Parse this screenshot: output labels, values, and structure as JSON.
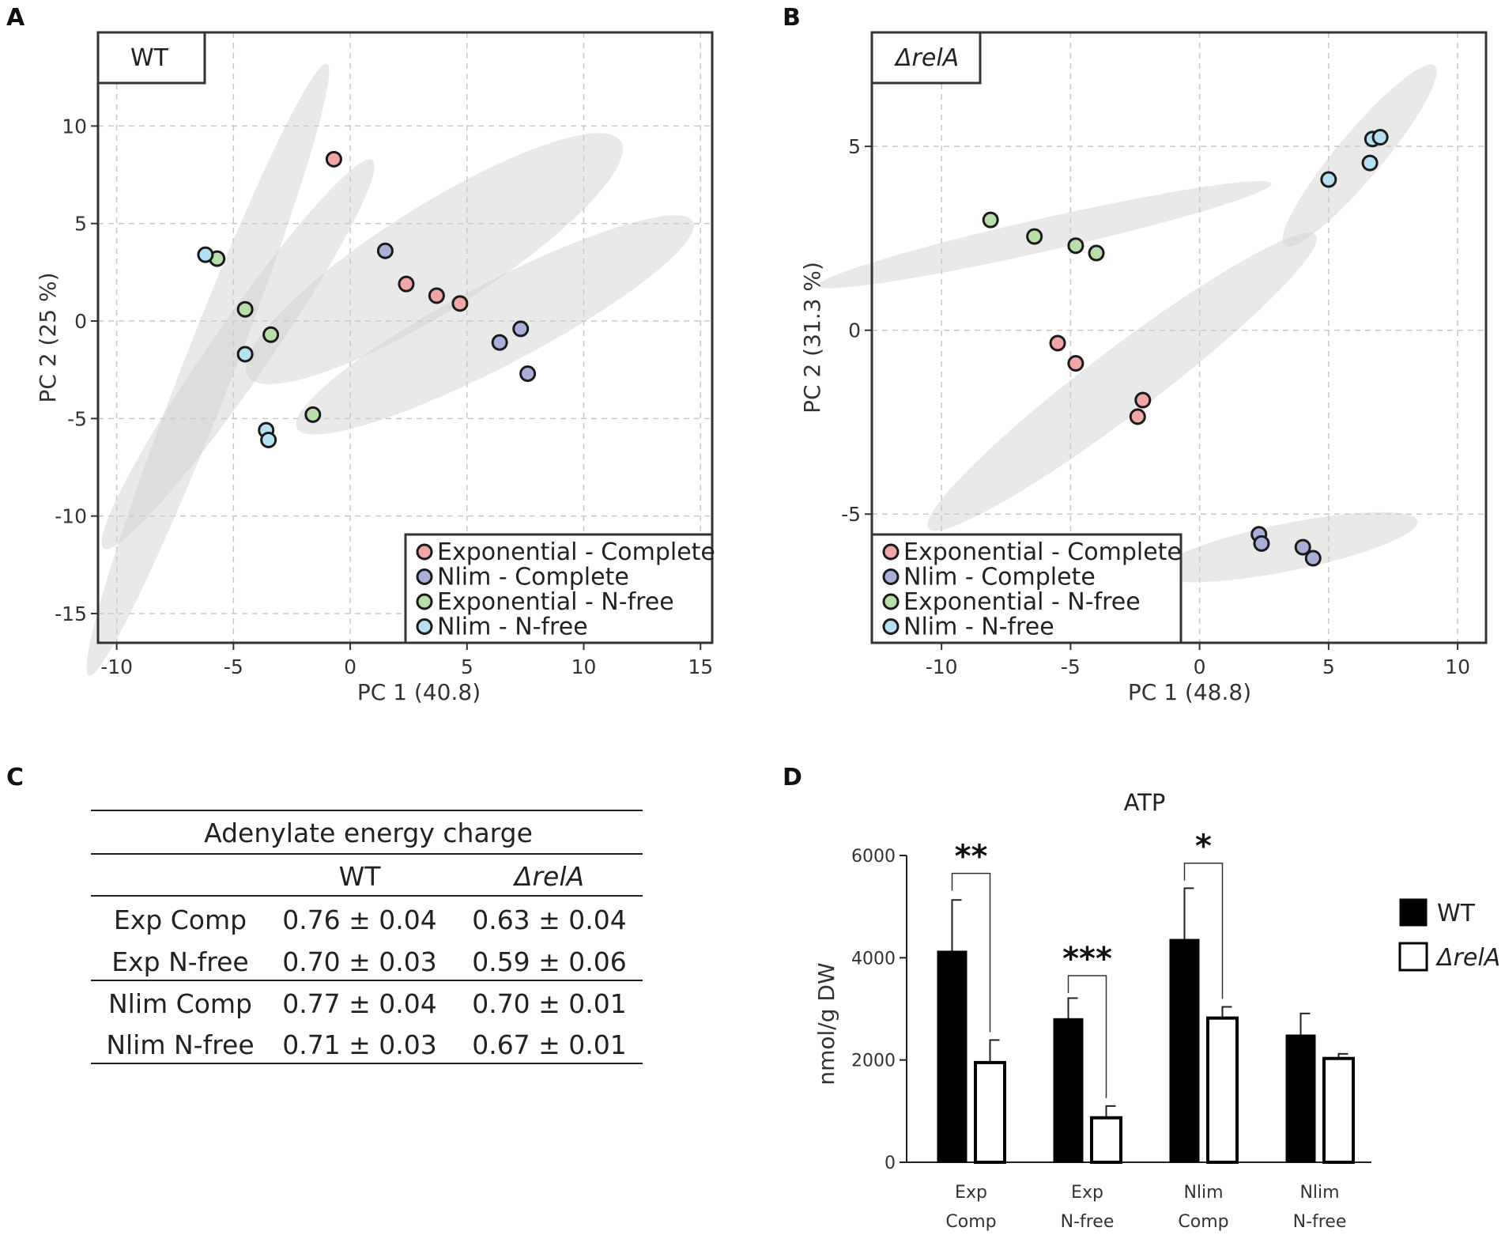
{
  "panels": {
    "A": "A",
    "B": "B",
    "C": "C",
    "D": "D"
  },
  "chart_data": [
    {
      "id": "A",
      "type": "scatter",
      "title": "WT",
      "xlabel": "PC 1 (40.8)",
      "ylabel": "PC 2 (25 %)",
      "xlim": [
        -10.8,
        15.5
      ],
      "ylim": [
        -16.5,
        14.8
      ],
      "xticks": [
        -10,
        -5,
        0,
        5,
        10,
        15
      ],
      "yticks": [
        10,
        5,
        0,
        -5,
        -10,
        -15
      ],
      "grid": true,
      "legend_position": "bottom-right",
      "series": [
        {
          "name": "Exponential - Complete",
          "color": "#f0a6a6",
          "points": [
            [
              -0.7,
              8.3
            ],
            [
              2.4,
              1.9
            ],
            [
              3.7,
              1.3
            ],
            [
              4.7,
              0.9
            ]
          ]
        },
        {
          "name": "Nlim - Complete",
          "color": "#a9afd8",
          "points": [
            [
              1.5,
              3.6
            ],
            [
              6.4,
              -1.1
            ],
            [
              7.3,
              -0.4
            ],
            [
              7.6,
              -2.7
            ]
          ]
        },
        {
          "name": "Exponential - N-free",
          "color": "#b9dfa8",
          "points": [
            [
              -5.7,
              3.2
            ],
            [
              -4.5,
              0.6
            ],
            [
              -3.4,
              -0.7
            ],
            [
              -1.6,
              -4.8
            ]
          ]
        },
        {
          "name": "Nlim - N-free",
          "color": "#b3e0f2",
          "points": [
            [
              -6.2,
              3.4
            ],
            [
              -4.5,
              -1.7
            ],
            [
              -3.6,
              -5.6
            ],
            [
              -3.5,
              -6.1
            ]
          ]
        }
      ],
      "ellipses": [
        {
          "group": "Exponential - Complete",
          "cx": 3.6,
          "cy": 3.2,
          "rx": 10.0,
          "ry": 2.5,
          "angle_deg": 37
        },
        {
          "group": "Nlim - Complete",
          "cx": 6.2,
          "cy": -0.2,
          "rx": 10.0,
          "ry": 2.0,
          "angle_deg": 32
        },
        {
          "group": "Exponential - N-free",
          "cx": -4.8,
          "cy": -1.7,
          "rx": 11.5,
          "ry": 1.3,
          "angle_deg": 60
        },
        {
          "group": "Nlim - N-free",
          "cx": -6.1,
          "cy": -2.5,
          "rx": 16.5,
          "ry": 1.1,
          "angle_deg": 72
        }
      ]
    },
    {
      "id": "B",
      "type": "scatter",
      "title": "ΔrelA",
      "xlabel": "PC 1 (48.8)",
      "ylabel": "PC 2 (31.3 %)",
      "xlim": [
        -12.7,
        11.1
      ],
      "ylim": [
        -8.5,
        8.1
      ],
      "xticks": [
        -10,
        -5,
        0,
        5,
        10
      ],
      "yticks": [
        5,
        0,
        -5
      ],
      "grid": true,
      "legend_position": "bottom-left",
      "series": [
        {
          "name": "Exponential - Complete",
          "color": "#f0a6a6",
          "points": [
            [
              -5.5,
              -0.35
            ],
            [
              -4.8,
              -0.9
            ],
            [
              -2.2,
              -1.9
            ],
            [
              -2.4,
              -2.35
            ]
          ]
        },
        {
          "name": "Nlim - Complete",
          "color": "#a9afd8",
          "points": [
            [
              2.3,
              -5.55
            ],
            [
              2.4,
              -5.8
            ],
            [
              4.0,
              -5.9
            ],
            [
              4.4,
              -6.2
            ]
          ]
        },
        {
          "name": "Exponential - N-free",
          "color": "#b9dfa8",
          "points": [
            [
              -8.1,
              3.0
            ],
            [
              -6.4,
              2.55
            ],
            [
              -4.8,
              2.3
            ],
            [
              -4.0,
              2.1
            ]
          ]
        },
        {
          "name": "Nlim - N-free",
          "color": "#b3e0f2",
          "points": [
            [
              5.0,
              4.1
            ],
            [
              6.6,
              4.55
            ],
            [
              6.7,
              5.2
            ],
            [
              7.0,
              5.25
            ]
          ]
        }
      ],
      "ellipses": [
        {
          "group": "Exponential - Complete",
          "cx": -3.0,
          "cy": -1.4,
          "rx": 8.5,
          "ry": 0.95,
          "angle_deg": 28
        },
        {
          "group": "Nlim - Complete",
          "cx": 3.4,
          "cy": -5.9,
          "rx": 5.1,
          "ry": 0.65,
          "angle_deg": 8
        },
        {
          "group": "Exponential - N-free",
          "cx": -6.0,
          "cy": 2.6,
          "rx": 8.9,
          "ry": 0.45,
          "angle_deg": 9
        },
        {
          "group": "Nlim - N-free",
          "cx": 6.2,
          "cy": 4.75,
          "rx": 3.8,
          "ry": 0.7,
          "angle_deg": 40
        }
      ]
    },
    {
      "id": "C",
      "type": "table",
      "title": "Adenylate energy charge",
      "columns": [
        "",
        "WT",
        "ΔrelA"
      ],
      "rows": [
        [
          "Exp Comp",
          "0.76 ± 0.04",
          "0.63 ± 0.04"
        ],
        [
          "Exp N-free",
          "0.70 ± 0.03",
          "0.59 ± 0.06"
        ],
        [
          "Nlim Comp",
          "0.77 ± 0.04",
          "0.70 ± 0.01"
        ],
        [
          "Nlim N-free",
          "0.71 ± 0.03",
          "0.67 ± 0.01"
        ]
      ]
    },
    {
      "id": "D",
      "type": "bar",
      "title": "ATP",
      "ylabel": "nmol/g DW",
      "ylim": [
        0,
        6000
      ],
      "yticks": [
        0,
        2000,
        4000,
        6000
      ],
      "categories": [
        [
          "Exp",
          "Comp"
        ],
        [
          "Exp",
          "N-free"
        ],
        [
          "Nlim",
          "Comp"
        ],
        [
          "Nlim",
          "N-free"
        ]
      ],
      "series": [
        {
          "name": "WT",
          "fill": "#000000",
          "values": [
            4130,
            2810,
            4360,
            2490
          ],
          "errors": [
            1000,
            400,
            1000,
            420
          ]
        },
        {
          "name": "ΔrelA",
          "fill": "#ffffff",
          "values": [
            1950,
            870,
            2820,
            2030
          ],
          "errors": [
            440,
            230,
            220,
            90
          ]
        }
      ],
      "significance": [
        {
          "category": 0,
          "label": "**",
          "bracket_y": 5650
        },
        {
          "category": 1,
          "label": "***",
          "bracket_y": 3650
        },
        {
          "category": 2,
          "label": "*",
          "bracket_y": 5850
        }
      ],
      "legend_position": "right"
    }
  ]
}
